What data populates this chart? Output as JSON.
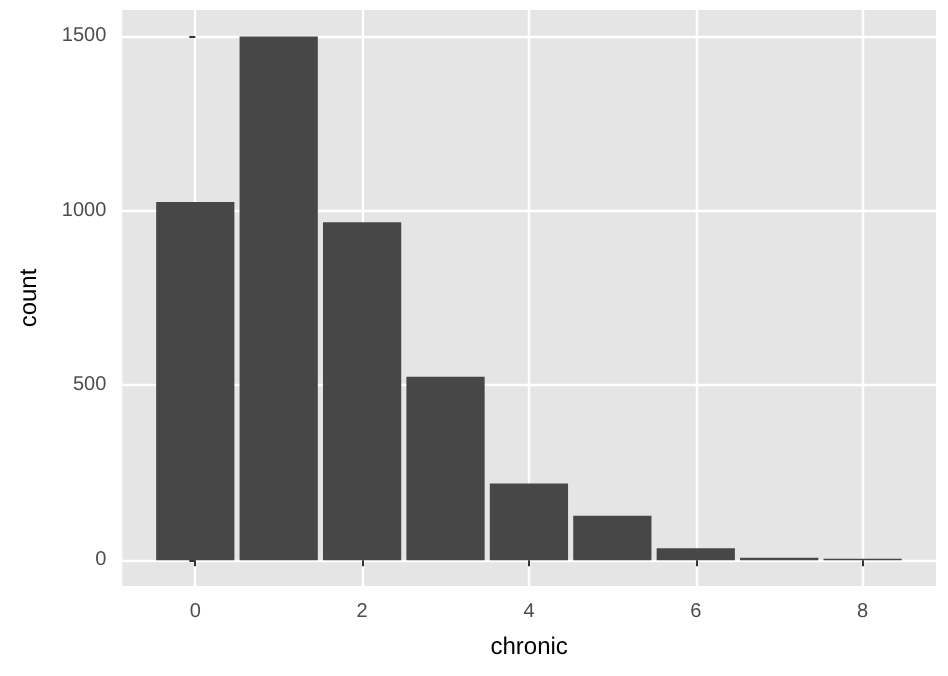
{
  "chart_data": {
    "type": "bar",
    "xlabel": "chronic",
    "ylabel": "count",
    "x": [
      0,
      1,
      2,
      3,
      4,
      5,
      6,
      7,
      8
    ],
    "values": [
      1025,
      1498,
      967,
      525,
      219,
      127,
      34,
      7,
      4
    ],
    "color": "#474747",
    "xlim": [
      -0.875,
      8.88
    ],
    "xticks": [
      0,
      2,
      4,
      6,
      8
    ],
    "ylim": [
      -74,
      1574
    ],
    "yticks": [
      0,
      500,
      1000,
      1500
    ],
    "grid": true
  }
}
